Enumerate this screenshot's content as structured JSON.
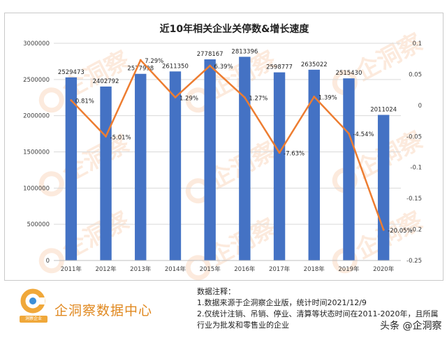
{
  "chart_data": {
    "type": "bar+line",
    "title": "近10年相关企业关停数&增长速度",
    "categories": [
      "2011年",
      "2012年",
      "2013年",
      "2014年",
      "2015年",
      "2016年",
      "2017年",
      "2018年",
      "2019年",
      "2020年"
    ],
    "series": [
      {
        "type": "bar",
        "axis": "left",
        "values": [
          2529473,
          2402792,
          2577998,
          2611350,
          2778167,
          2813396,
          2598777,
          2635022,
          2515430,
          2011024
        ],
        "labels": [
          "2529473",
          "2402792",
          "2577998",
          "2611350",
          "2778167",
          "2813396",
          "2598777",
          "2635022",
          "2515430",
          "2011024"
        ],
        "color": "#4472c4"
      },
      {
        "type": "line",
        "axis": "right",
        "values": [
          0.0081,
          -0.0501,
          0.0729,
          0.0129,
          0.0639,
          0.0127,
          -0.0763,
          0.0139,
          -0.0454,
          -0.2005
        ],
        "labels": [
          "0.81%",
          "-5.01%",
          "7.29%",
          "1.29%",
          "6.39%",
          "1.27%",
          "-7.63%",
          "1.39%",
          "-4.54%",
          "-20.05%"
        ],
        "color": "#ed7d31"
      }
    ],
    "y_left": {
      "range": [
        0,
        3000000
      ],
      "ticks": [
        "0",
        "500000",
        "1000000",
        "1500000",
        "2000000",
        "2500000",
        "3000000"
      ]
    },
    "y_right": {
      "range": [
        -0.25,
        0.1
      ],
      "ticks": [
        "-0.25",
        "-0.2",
        "-0.15",
        "-0.1",
        "-0.05",
        "0",
        "0.05",
        "0.1"
      ]
    },
    "grid": true,
    "legend": "none"
  },
  "watermark": {
    "text": "企洞察",
    "color": "#f3a46a"
  },
  "footer": {
    "logo_caption": "洞察企业",
    "brand": "企洞察数据中心",
    "notes_title": "数据注释：",
    "note_1": "1.数据来源于企洞察企业版，统计时间2021/12/9",
    "note_2": "2.仅统计注销、吊销、停业、清算等状态时间在2011-2020年，且所属",
    "note_3": "行业为批发和零售业的企业",
    "credit": "头条 @企洞察"
  }
}
